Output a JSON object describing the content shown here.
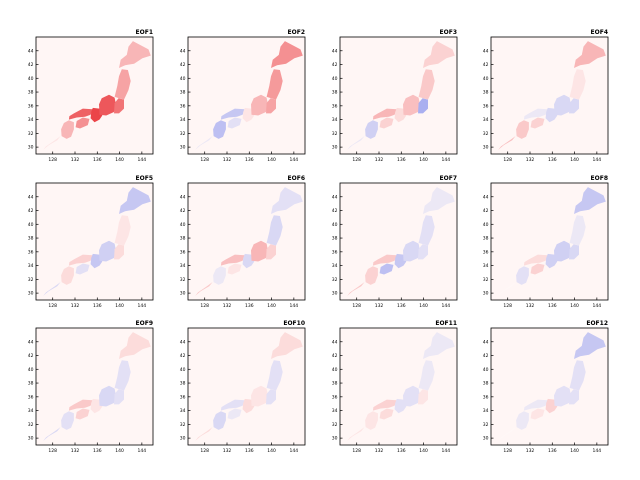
{
  "figure": {
    "longitude_ticks": [
      "128",
      "132",
      "136",
      "140",
      "144"
    ],
    "latitude_ticks": [
      "30",
      "32",
      "34",
      "36",
      "38",
      "40",
      "42",
      "44"
    ],
    "extent": {
      "lon": [
        125,
        146
      ],
      "lat": [
        29,
        46
      ]
    },
    "colors": {
      "positive": "#e8262b",
      "negative": "#2d44e6",
      "background": "#fff6f5"
    }
  },
  "panels": [
    {
      "title": "EOF1",
      "regions": {
        "kyushu": 0.35,
        "shikoku": 0.55,
        "chugoku": 0.8,
        "kinki": 0.95,
        "chubu": 0.85,
        "kanto": 0.7,
        "tohoku": 0.45,
        "hokkaido": 0.35,
        "okinawa": 0.1
      }
    },
    {
      "title": "EOF2",
      "regions": {
        "kyushu": -0.35,
        "shikoku": -0.15,
        "chugoku": -0.3,
        "kinki": 0.1,
        "chubu": 0.35,
        "kanto": 0.45,
        "tohoku": 0.5,
        "hokkaido": 0.55,
        "okinawa": -0.1
      }
    },
    {
      "title": "EOF3",
      "regions": {
        "kyushu": -0.25,
        "shikoku": 0.2,
        "chugoku": 0.35,
        "kinki": 0.15,
        "chubu": 0.3,
        "kanto": -0.45,
        "tohoku": 0.25,
        "hokkaido": 0.2,
        "okinawa": -0.1
      }
    },
    {
      "title": "EOF4",
      "regions": {
        "kyushu": 0.25,
        "shikoku": 0.2,
        "chugoku": -0.1,
        "kinki": -0.2,
        "chubu": -0.2,
        "kanto": -0.2,
        "tohoku": 0.1,
        "hokkaido": 0.35,
        "okinawa": 0.3
      }
    },
    {
      "title": "EOF5",
      "regions": {
        "kyushu": 0.15,
        "shikoku": -0.15,
        "chugoku": 0.2,
        "kinki": -0.3,
        "chubu": -0.25,
        "kanto": 0.15,
        "tohoku": 0.1,
        "hokkaido": -0.3,
        "okinawa": -0.2
      }
    },
    {
      "title": "EOF6",
      "regions": {
        "kyushu": -0.1,
        "shikoku": 0.1,
        "chugoku": 0.3,
        "kinki": -0.2,
        "chubu": 0.35,
        "kanto": 0.2,
        "tohoku": -0.2,
        "hokkaido": -0.15,
        "okinawa": 0.25
      }
    },
    {
      "title": "EOF7",
      "regions": {
        "kyushu": 0.2,
        "shikoku": -0.35,
        "chugoku": 0.25,
        "kinki": -0.3,
        "chubu": -0.2,
        "kanto": -0.15,
        "tohoku": -0.15,
        "hokkaido": -0.1,
        "okinawa": 0.25
      }
    },
    {
      "title": "EOF8",
      "regions": {
        "kyushu": -0.15,
        "shikoku": 0.2,
        "chugoku": 0.15,
        "kinki": -0.25,
        "chubu": -0.25,
        "kanto": -0.2,
        "tohoku": -0.1,
        "hokkaido": -0.3,
        "okinawa": 0
      }
    },
    {
      "title": "EOF9",
      "regions": {
        "kyushu": -0.15,
        "shikoku": 0.2,
        "chugoku": 0.25,
        "kinki": 0.1,
        "chubu": -0.2,
        "kanto": -0.15,
        "tohoku": -0.15,
        "hokkaido": 0.15,
        "okinawa": -0.2
      }
    },
    {
      "title": "EOF10",
      "regions": {
        "kyushu": -0.2,
        "shikoku": -0.1,
        "chugoku": -0.15,
        "kinki": 0.15,
        "chubu": 0.1,
        "kanto": -0.15,
        "tohoku": -0.15,
        "hokkaido": 0.15,
        "okinawa": 0.15
      }
    },
    {
      "title": "EOF11",
      "regions": {
        "kyushu": 0.1,
        "shikoku": 0.15,
        "chugoku": 0.2,
        "kinki": -0.15,
        "chubu": -0.15,
        "kanto": 0.1,
        "tohoku": -0.1,
        "hokkaido": -0.1,
        "okinawa": 0.1
      }
    },
    {
      "title": "EOF12",
      "regions": {
        "kyushu": -0.1,
        "shikoku": 0.1,
        "chugoku": -0.1,
        "kinki": 0.2,
        "chubu": -0.15,
        "kanto": -0.15,
        "tohoku": -0.15,
        "hokkaido": -0.3,
        "okinawa": 0
      }
    }
  ]
}
